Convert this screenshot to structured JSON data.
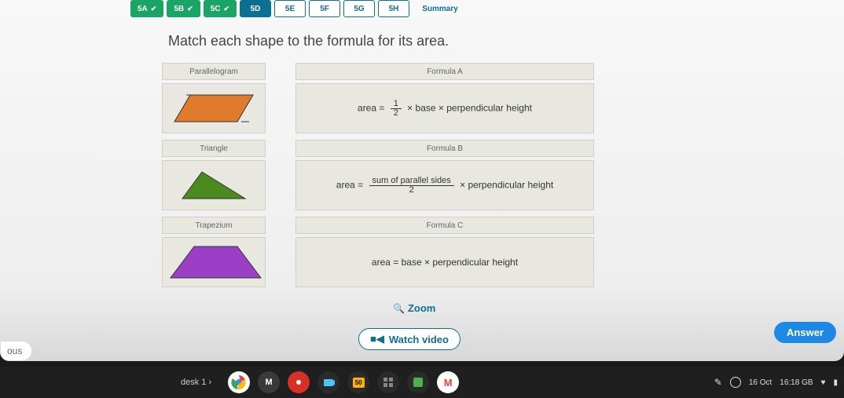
{
  "nav": {
    "tabs": [
      {
        "label": "5A",
        "state": "done",
        "check": true
      },
      {
        "label": "5B",
        "state": "done",
        "check": true
      },
      {
        "label": "5C",
        "state": "done",
        "check": true
      },
      {
        "label": "5D",
        "state": "active",
        "check": false
      },
      {
        "label": "5E",
        "state": "todo",
        "check": false
      },
      {
        "label": "5F",
        "state": "todo",
        "check": false
      },
      {
        "label": "5G",
        "state": "todo",
        "check": false
      },
      {
        "label": "5H",
        "state": "todo",
        "check": false
      }
    ],
    "summary": "Summary"
  },
  "instruction": "Match each shape to the formula for its area.",
  "shapes": [
    {
      "name": "Parallelogram",
      "type": "parallelogram",
      "fill": "#e07a2c",
      "stroke": "#333"
    },
    {
      "name": "Triangle",
      "type": "triangle",
      "fill": "#4a8a1f",
      "stroke": "#333"
    },
    {
      "name": "Trapezium",
      "type": "trapezium",
      "fill": "#9c3fc7",
      "stroke": "#333"
    }
  ],
  "formulas": [
    {
      "title": "Formula A",
      "prefix": "area =",
      "frac_n": "1",
      "frac_d": "2",
      "mid": " × base × perpendicular height",
      "type": "half"
    },
    {
      "title": "Formula B",
      "prefix": "area =",
      "frac_n": "sum of parallel sides",
      "frac_d": "2",
      "mid": " × perpendicular height",
      "type": "sumpar"
    },
    {
      "title": "Formula C",
      "prefix": "area = base × perpendicular height",
      "type": "plain"
    }
  ],
  "links": {
    "zoom": "Zoom",
    "watch": "Watch video",
    "answer": "Answer",
    "ous": "ous"
  },
  "taskbar": {
    "desk": "desk 1   ›",
    "icons": [
      {
        "bg": "#ffffff",
        "inner": "",
        "innerColor": "#d93025",
        "type": "chrome"
      },
      {
        "bg": "#3a3a3a",
        "inner": "M",
        "innerColor": "#fff"
      },
      {
        "bg": "#d93025",
        "inner": "",
        "innerColor": "#fff",
        "type": "red"
      },
      {
        "bg": "#2a2a2a",
        "inner": "",
        "innerColor": "#4fc3f7",
        "type": "teams"
      },
      {
        "bg": "#2a2a2a",
        "inner": "50",
        "innerColor": "#ffb300",
        "type": "badge"
      },
      {
        "bg": "#2a2a2a",
        "inner": "",
        "innerColor": "#888",
        "type": "grid"
      },
      {
        "bg": "#2a2a2a",
        "inner": "",
        "innerColor": "#4caf50",
        "type": "green"
      },
      {
        "bg": "#ffffff",
        "inner": "M",
        "innerColor": "#ea4335",
        "type": "gmail"
      }
    ],
    "date": "16 Oct",
    "time": "16:18 GB",
    "wifi": "♥",
    "batt": "▮"
  }
}
